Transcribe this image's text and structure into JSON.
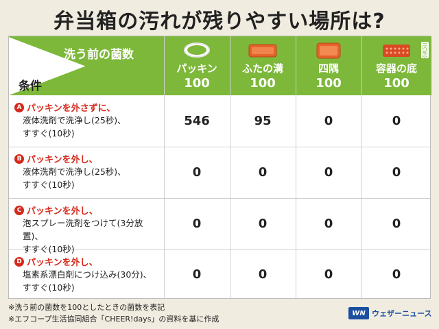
{
  "title": "弁当箱の汚れが残りやすい場所は?",
  "header": {
    "top_label": "洗う前の菌数",
    "bottom_label": "条件",
    "columns": [
      {
        "name": "パッキン",
        "base": "100",
        "icon": "gasket-icon"
      },
      {
        "name": "ふたの溝",
        "base": "100",
        "icon": "lid-icon"
      },
      {
        "name": "四隅",
        "base": "100",
        "icon": "corner-box-icon"
      },
      {
        "name": "容器の底",
        "base": "100",
        "sub": "(内部)",
        "icon": "box-bottom-icon"
      }
    ]
  },
  "rows": [
    {
      "letter": "A",
      "headline": "パッキンを外さずに、",
      "lines": [
        "液体洗剤で洗浄し(25秒)、",
        "すすぐ(10秒)"
      ],
      "values": [
        "546",
        "95",
        "0",
        "0"
      ]
    },
    {
      "letter": "B",
      "headline": "パッキンを外し、",
      "lines": [
        "液体洗剤で洗浄し(25秒)、",
        "すすぐ(10秒)"
      ],
      "values": [
        "0",
        "0",
        "0",
        "0"
      ]
    },
    {
      "letter": "C",
      "headline": "パッキンを外し、",
      "lines": [
        "泡スプレー洗剤をつけて(3分放置)、",
        "すすぐ(10秒)"
      ],
      "values": [
        "0",
        "0",
        "0",
        "0"
      ]
    },
    {
      "letter": "D",
      "headline": "パッキンを外し、",
      "lines": [
        "塩素系漂白剤につけ込み(30分)、",
        "すすぐ(10秒)"
      ],
      "values": [
        "0",
        "0",
        "0",
        "0"
      ]
    }
  ],
  "footer": {
    "note1": "※洗う前の菌数を100としたときの菌数を表記",
    "note2": "※エフコープ生活協同組合「CHEER!days」の資料を基に作成"
  },
  "logo": {
    "mark": "WN",
    "text": "ウェザーニュース"
  },
  "colors": {
    "header_green": "#7db83a",
    "accent_red": "#d6281c",
    "logo_blue": "#1a4fa0"
  }
}
